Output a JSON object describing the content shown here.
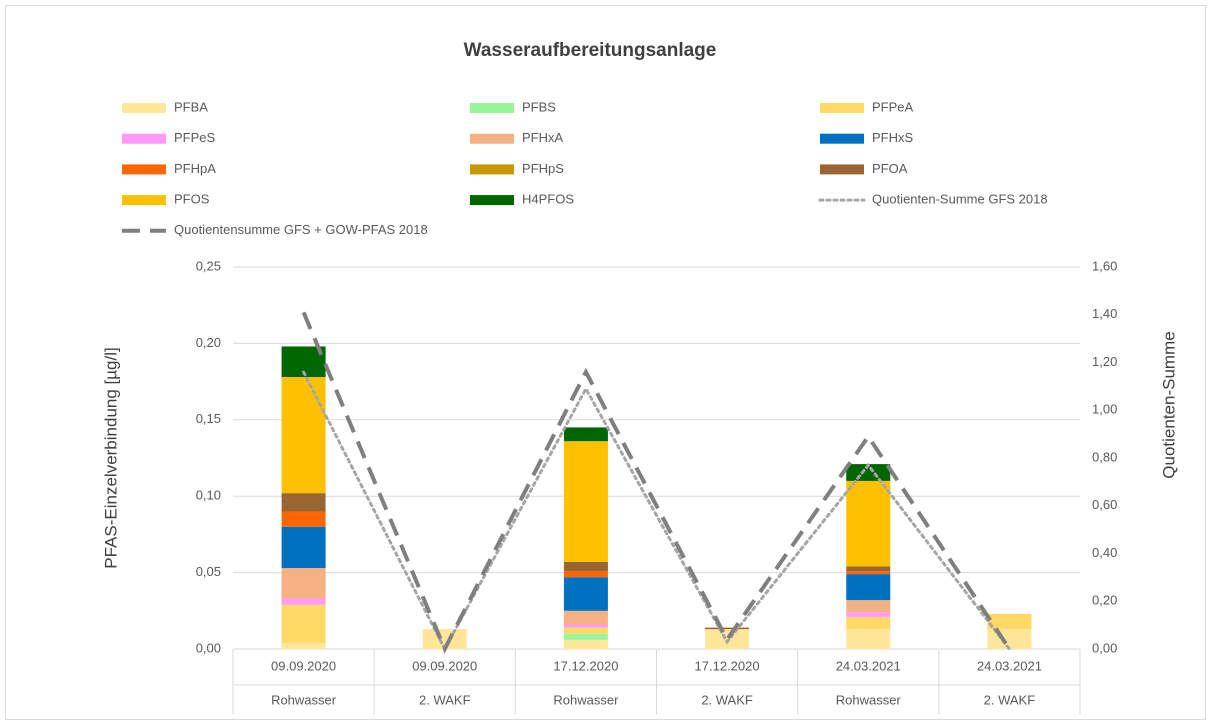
{
  "chart_data": {
    "type": "bar",
    "stacked": true,
    "title": "Wasseraufbereitungsanlage",
    "y_label": "PFAS-Einzelverbindung [µg/l]",
    "y2_label": "Quotienten-Summe",
    "categories": [
      "09.09.2020",
      "09.09.2020",
      "17.12.2020",
      "17.12.2020",
      "24.03.2021",
      "24.03.2021"
    ],
    "subcategories": [
      "Rohwasser",
      "2. WAKF",
      "Rohwasser",
      "2. WAKF",
      "Rohwasser",
      "2. WAKF"
    ],
    "ylim": [
      0,
      0.25
    ],
    "yticks": [
      {
        "value": 0,
        "label": "0,00"
      },
      {
        "value": 0.05,
        "label": "0,05"
      },
      {
        "value": 0.1,
        "label": "0,10"
      },
      {
        "value": 0.15,
        "label": "0,15"
      },
      {
        "value": 0.2,
        "label": "0,20"
      },
      {
        "value": 0.25,
        "label": "0,25"
      }
    ],
    "y2lim": [
      0,
      1.6
    ],
    "y2ticks": [
      {
        "value": 0,
        "label": "0,00"
      },
      {
        "value": 0.2,
        "label": "0,20"
      },
      {
        "value": 0.4,
        "label": "0,40"
      },
      {
        "value": 0.6,
        "label": "0,60"
      },
      {
        "value": 0.8,
        "label": "0,80"
      },
      {
        "value": 1.0,
        "label": "1,00"
      },
      {
        "value": 1.2,
        "label": "1,20"
      },
      {
        "value": 1.4,
        "label": "1,40"
      },
      {
        "value": 1.6,
        "label": "1,60"
      }
    ],
    "grid": true,
    "legend": "top",
    "series": [
      {
        "name": "PFBA",
        "color": "#ffe699",
        "values": [
          0.004,
          0.013,
          0.006,
          0.013,
          0.013,
          0.013
        ]
      },
      {
        "name": "PFBS",
        "color": "#99f599",
        "values": [
          0,
          0,
          0.004,
          0,
          0,
          0
        ]
      },
      {
        "name": "PFPeA",
        "color": "#ffd966",
        "values": [
          0.025,
          0,
          0.004,
          0,
          0.008,
          0.01
        ]
      },
      {
        "name": "PFPeS",
        "color": "#ff99ff",
        "values": [
          0.004,
          0,
          0.002,
          0,
          0.003,
          0
        ]
      },
      {
        "name": "PFHxA",
        "color": "#f4b183",
        "values": [
          0.02,
          0,
          0.009,
          0,
          0.008,
          0
        ]
      },
      {
        "name": "PFHxS",
        "color": "#0070c0",
        "values": [
          0.027,
          0,
          0.022,
          0,
          0.017,
          0
        ]
      },
      {
        "name": "PFHpA",
        "color": "#ff6600",
        "values": [
          0.01,
          0,
          0.004,
          0,
          0.002,
          0
        ]
      },
      {
        "name": "PFHpS",
        "color": "#c99700",
        "values": [
          0,
          0,
          0,
          0,
          0,
          0
        ]
      },
      {
        "name": "PFOA",
        "color": "#996633",
        "values": [
          0.012,
          0,
          0.006,
          0.001,
          0.003,
          0
        ]
      },
      {
        "name": "PFOS",
        "color": "#ffc000",
        "values": [
          0.076,
          0,
          0.079,
          0,
          0.056,
          0
        ]
      },
      {
        "name": "H4PFOS",
        "color": "#006600",
        "values": [
          0.02,
          0,
          0.009,
          0,
          0.011,
          0
        ]
      },
      {
        "name": "Quotienten-Summe GFS 2018",
        "type": "line",
        "axis": "y2",
        "style": "dotted",
        "color": "#a6a6a6",
        "values": [
          1.16,
          0,
          1.09,
          0.03,
          0.77,
          0
        ]
      },
      {
        "name": "Quotientensumme GFS + GOW-PFAS 2018",
        "type": "line",
        "axis": "y2",
        "style": "dashed",
        "color": "#7f7f7f",
        "values": [
          1.41,
          0,
          1.16,
          0.04,
          0.89,
          0
        ]
      }
    ]
  }
}
